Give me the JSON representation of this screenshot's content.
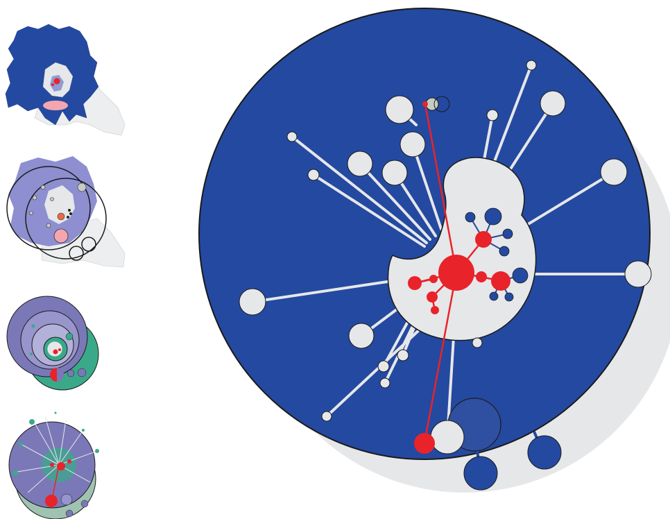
{
  "colors": {
    "blue": "#2449a0",
    "light_gray": "#e6e7e9",
    "red": "#e8232a",
    "pink": "#f4a6b0",
    "lavender": "#8e8fd0",
    "purple": "#7b78b8",
    "teal": "#3aa989",
    "outline": "#1a1a1a"
  },
  "panels": [
    {
      "id": "thumb1",
      "name": "thumbnail-map-regions"
    },
    {
      "id": "thumb2",
      "name": "thumbnail-map-circles"
    },
    {
      "id": "thumb3",
      "name": "thumbnail-nested-circles"
    },
    {
      "id": "thumb4",
      "name": "thumbnail-radial-links"
    },
    {
      "id": "main",
      "name": "main-radial-diagram"
    }
  ]
}
